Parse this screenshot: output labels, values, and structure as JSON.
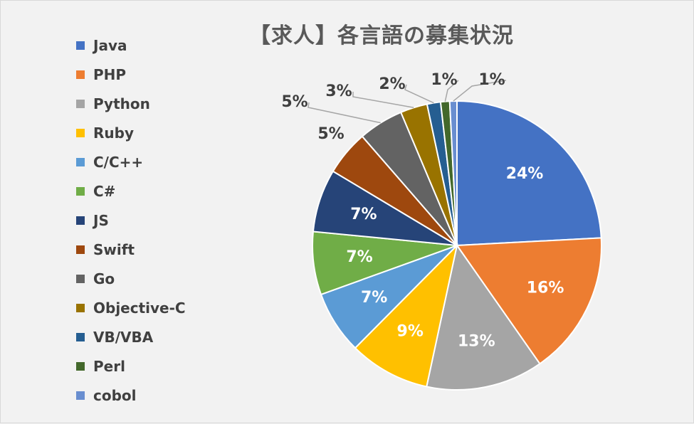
{
  "chart_data": {
    "type": "pie",
    "title": "【求人】各言語の募集状況",
    "legend_position": "left",
    "series": [
      {
        "name": "Java",
        "value": 24,
        "label": "24%",
        "color": "#4472C4"
      },
      {
        "name": "PHP",
        "value": 16,
        "label": "16%",
        "color": "#ED7D31"
      },
      {
        "name": "Python",
        "value": 13,
        "label": "13%",
        "color": "#A5A5A5"
      },
      {
        "name": "Ruby",
        "value": 9,
        "label": "9%",
        "color": "#FFC000"
      },
      {
        "name": "C/C++",
        "value": 7,
        "label": "7%",
        "color": "#5B9BD5"
      },
      {
        "name": "C#",
        "value": 7,
        "label": "7%",
        "color": "#70AD47"
      },
      {
        "name": "JS",
        "value": 7,
        "label": "7%",
        "color": "#264478"
      },
      {
        "name": "Swift",
        "value": 5,
        "label": "5%",
        "color": "#9E480E"
      },
      {
        "name": "Go",
        "value": 5,
        "label": "5%",
        "color": "#636363"
      },
      {
        "name": "Objective-C",
        "value": 3,
        "label": "3%",
        "color": "#997300"
      },
      {
        "name": "VB/VBA",
        "value": 1.5,
        "label": "2%",
        "color": "#255E91"
      },
      {
        "name": "Perl",
        "value": 1,
        "label": "1%",
        "color": "#43682B"
      },
      {
        "name": "cobol",
        "value": 0.8,
        "label": "1%",
        "color": "#698ED0"
      }
    ]
  }
}
